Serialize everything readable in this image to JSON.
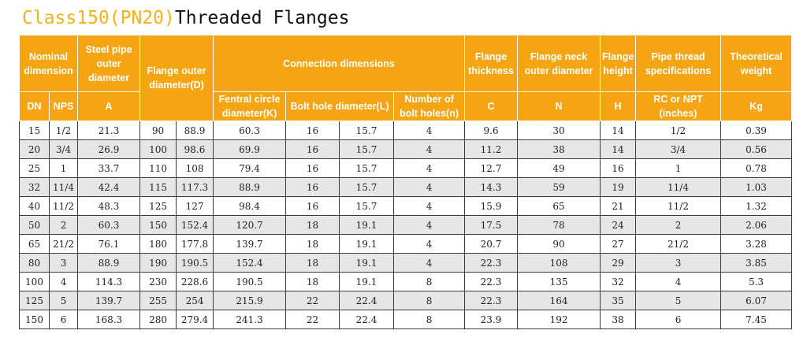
{
  "title": {
    "accent": "Class150(PN20)",
    "main": "Threaded Flanges"
  },
  "header": {
    "nominal_dimension": "Nominal dimension",
    "steel_pipe_outer_diameter": "Steel pipe outer diameter",
    "flange_outer_diameter": "Flange outer diameter(D)",
    "connection_dimensions": "Connection dimensions",
    "flange_thickness": "Flange thickness",
    "flange_neck_outer_diameter": "Flange neck outer diameter",
    "flange_height": "Flange height",
    "pipe_thread_specifications": "Pipe thread specifications",
    "theoretical_weight": "Theoretical weight",
    "dn": "DN",
    "nps": "NPS",
    "a": "A",
    "fentral_circle_diameter": "Fentral circle diameter(K)",
    "bolt_hole_diameter": "Bolt hole diameter(L)",
    "number_of_bolt_holes": "Number of bolt holes(n)",
    "c": "C",
    "n": "N",
    "h": "H",
    "rc_or_npt": "RC or NPT (inches)",
    "kg": "Kg"
  },
  "rows": [
    {
      "dn": "15",
      "nps": "1/2",
      "a": "21.3",
      "d1": "90",
      "d2": "88.9",
      "k": "60.3",
      "l1": "16",
      "l2": "15.7",
      "n_holes": "4",
      "c": "9.6",
      "neck": "30",
      "h": "14",
      "thread": "1/2",
      "kg": "0.39"
    },
    {
      "dn": "20",
      "nps": "3/4",
      "a": "26.9",
      "d1": "100",
      "d2": "98.6",
      "k": "69.9",
      "l1": "16",
      "l2": "15.7",
      "n_holes": "4",
      "c": "11.2",
      "neck": "38",
      "h": "14",
      "thread": "3/4",
      "kg": "0.56"
    },
    {
      "dn": "25",
      "nps": "1",
      "a": "33.7",
      "d1": "110",
      "d2": "108",
      "k": "79.4",
      "l1": "16",
      "l2": "15.7",
      "n_holes": "4",
      "c": "12.7",
      "neck": "49",
      "h": "16",
      "thread": "1",
      "kg": "0.78"
    },
    {
      "dn": "32",
      "nps": "11/4",
      "a": "42.4",
      "d1": "115",
      "d2": "117.3",
      "k": "88.9",
      "l1": "16",
      "l2": "15.7",
      "n_holes": "4",
      "c": "14.3",
      "neck": "59",
      "h": "19",
      "thread": "11/4",
      "kg": "1.03"
    },
    {
      "dn": "40",
      "nps": "11/2",
      "a": "48.3",
      "d1": "125",
      "d2": "127",
      "k": "98.4",
      "l1": "16",
      "l2": "15.7",
      "n_holes": "4",
      "c": "15.9",
      "neck": "65",
      "h": "21",
      "thread": "11/2",
      "kg": "1.32"
    },
    {
      "dn": "50",
      "nps": "2",
      "a": "60.3",
      "d1": "150",
      "d2": "152.4",
      "k": "120.7",
      "l1": "18",
      "l2": "19.1",
      "n_holes": "4",
      "c": "17.5",
      "neck": "78",
      "h": "24",
      "thread": "2",
      "kg": "2.06"
    },
    {
      "dn": "65",
      "nps": "21/2",
      "a": "76.1",
      "d1": "180",
      "d2": "177.8",
      "k": "139.7",
      "l1": "18",
      "l2": "19.1",
      "n_holes": "4",
      "c": "20.7",
      "neck": "90",
      "h": "27",
      "thread": "21/2",
      "kg": "3.28"
    },
    {
      "dn": "80",
      "nps": "3",
      "a": "88.9",
      "d1": "190",
      "d2": "190.5",
      "k": "152.4",
      "l1": "18",
      "l2": "19.1",
      "n_holes": "4",
      "c": "22.3",
      "neck": "108",
      "h": "29",
      "thread": "3",
      "kg": "3.85"
    },
    {
      "dn": "100",
      "nps": "4",
      "a": "114.3",
      "d1": "230",
      "d2": "228.6",
      "k": "190.5",
      "l1": "18",
      "l2": "19.1",
      "n_holes": "8",
      "c": "22.3",
      "neck": "135",
      "h": "32",
      "thread": "4",
      "kg": "5.3"
    },
    {
      "dn": "125",
      "nps": "5",
      "a": "139.7",
      "d1": "255",
      "d2": "254",
      "k": "215.9",
      "l1": "22",
      "l2": "22.4",
      "n_holes": "8",
      "c": "22.3",
      "neck": "164",
      "h": "35",
      "thread": "5",
      "kg": "6.07"
    },
    {
      "dn": "150",
      "nps": "6",
      "a": "168.3",
      "d1": "280",
      "d2": "279.4",
      "k": "241.3",
      "l1": "22",
      "l2": "22.4",
      "n_holes": "8",
      "c": "23.9",
      "neck": "192",
      "h": "38",
      "thread": "6",
      "kg": "7.45"
    }
  ]
}
